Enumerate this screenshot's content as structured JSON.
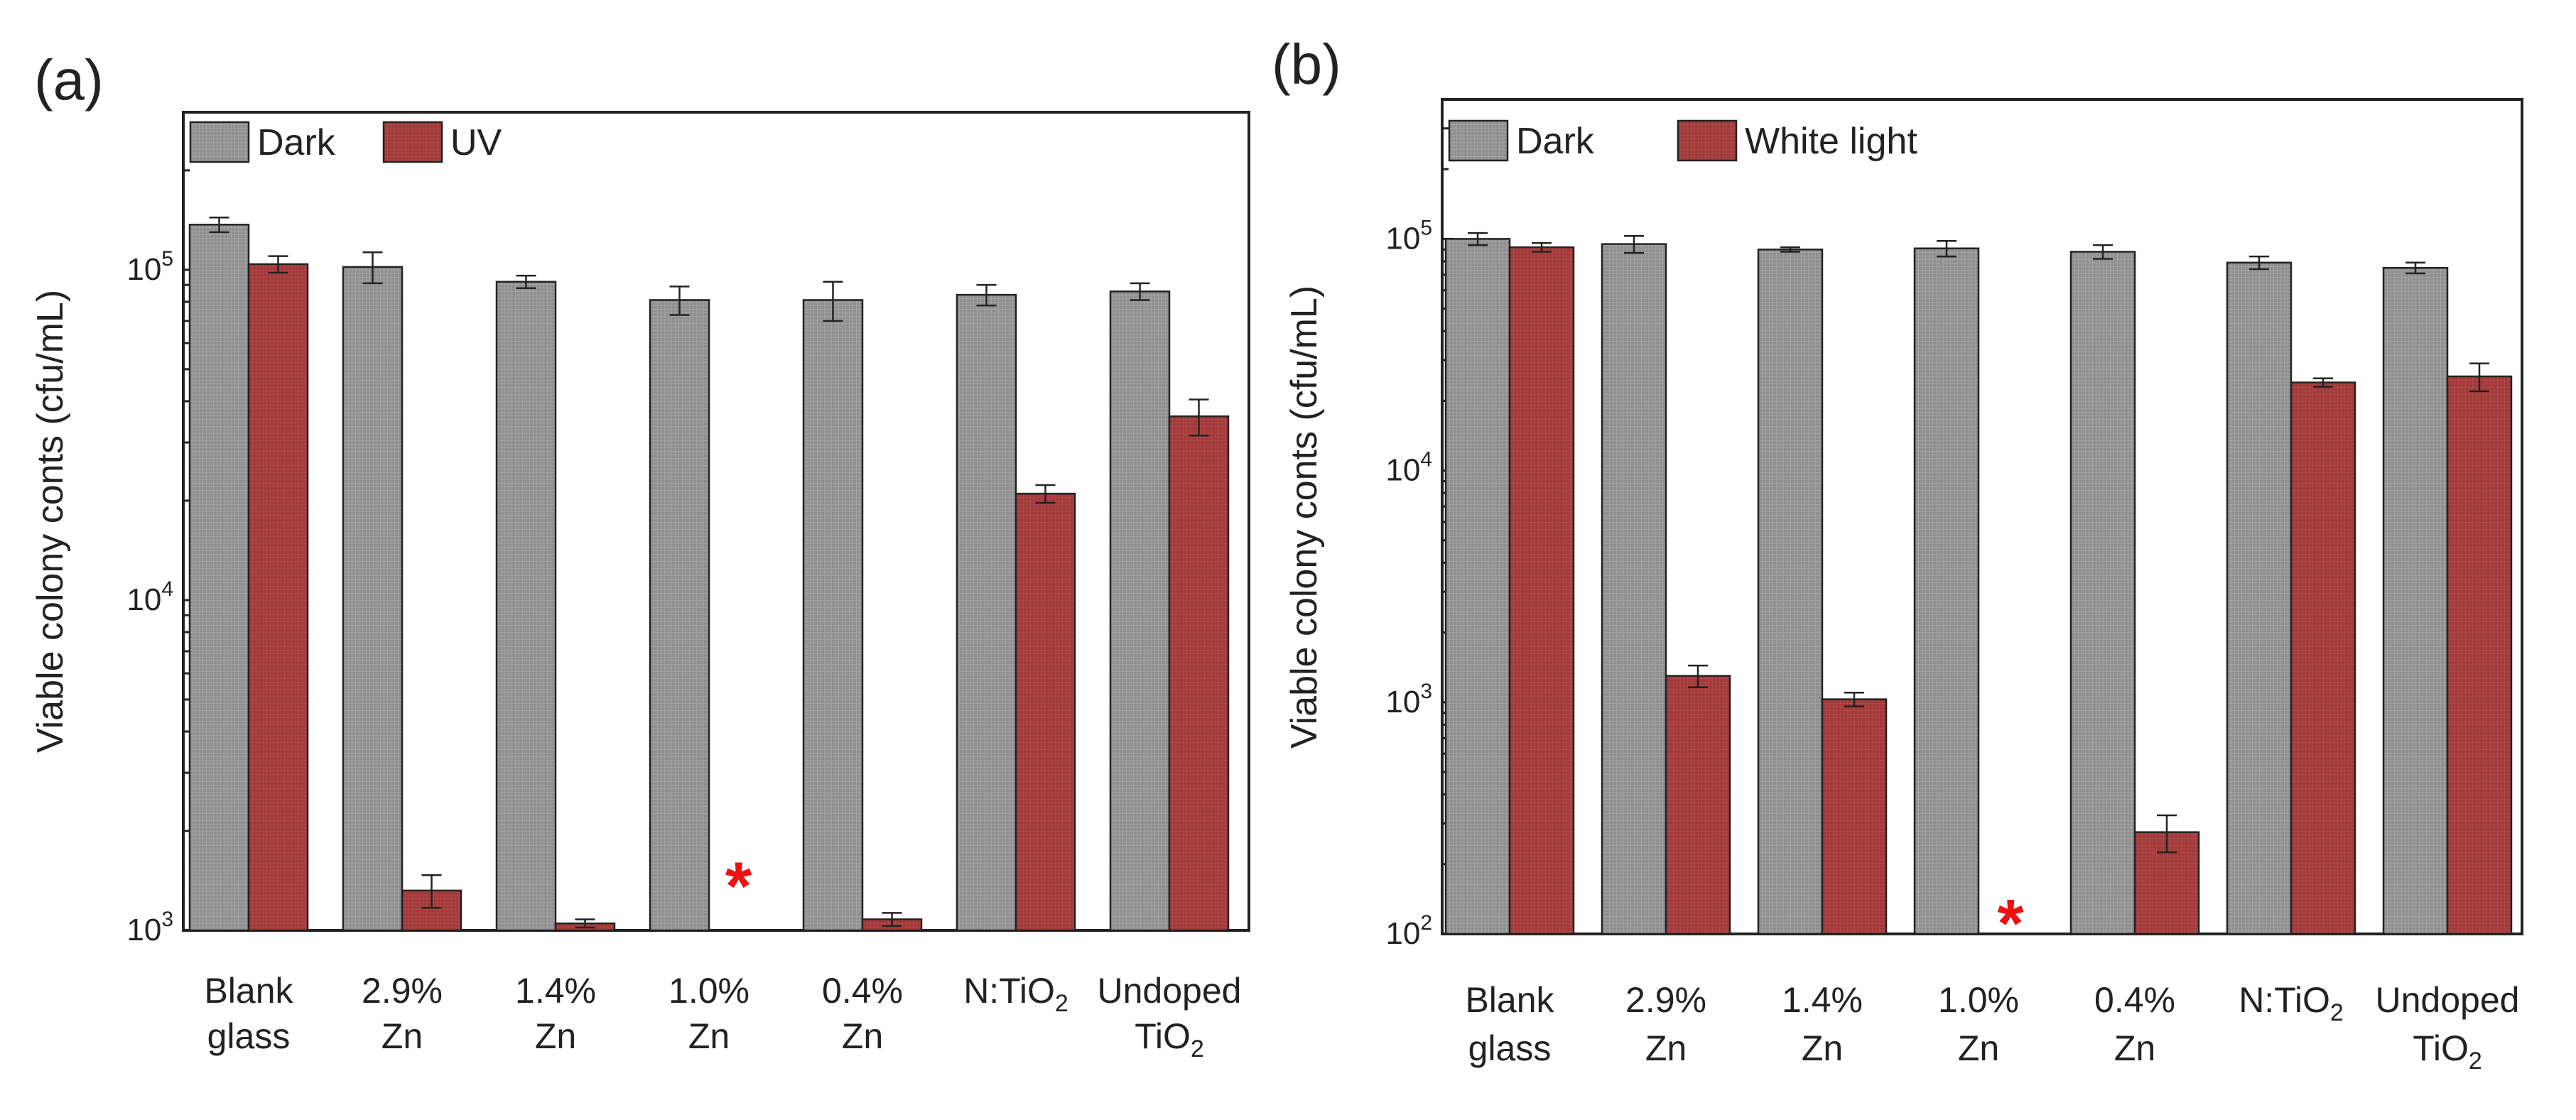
{
  "figure": {
    "colors": {
      "dark": "#8f8f8f",
      "light": "#a23a3a",
      "axis": "#222222",
      "marker": "#ee1111"
    },
    "marker_symbol": "*"
  },
  "chart_data": [
    {
      "panel_label": "(a)",
      "type": "bar",
      "yscale": "log",
      "ylim": [
        1000,
        300000
      ],
      "ylabel": "Viable colony conts (cfu/mL)",
      "yticks": [
        {
          "value": 1000,
          "base": "10",
          "exp": "3"
        },
        {
          "value": 10000,
          "base": "10",
          "exp": "4"
        },
        {
          "value": 100000,
          "base": "10",
          "exp": "5"
        }
      ],
      "legend": {
        "position": "top-left",
        "entries": [
          "Dark",
          "UV"
        ]
      },
      "categories": [
        [
          "Blank",
          "glass"
        ],
        [
          "2.9%",
          "Zn"
        ],
        [
          "1.4%",
          "Zn"
        ],
        [
          "1.0%",
          "Zn"
        ],
        [
          "0.4%",
          "Zn"
        ],
        [
          {
            "main": "N:TiO",
            "sub": "2"
          }
        ],
        [
          "Undoped",
          {
            "main": "TiO",
            "sub": "2"
          }
        ]
      ],
      "series": [
        {
          "name": "Dark",
          "values": [
            137000,
            102000,
            92000,
            81000,
            81000,
            84000,
            86000
          ],
          "errors": [
            7000,
            11000,
            4000,
            8000,
            11000,
            6000,
            5000
          ]
        },
        {
          "name": "UV",
          "values": [
            104000,
            1320,
            1050,
            null,
            1080,
            21000,
            36000
          ],
          "errors": [
            6000,
            150,
            30,
            null,
            50,
            1300,
            4500
          ]
        }
      ],
      "annotations": [
        {
          "text": "*",
          "category_index": 3,
          "series": "UV",
          "value": 1370
        }
      ]
    },
    {
      "panel_label": "(b)",
      "type": "bar",
      "yscale": "log",
      "ylim": [
        100,
        400000
      ],
      "ylabel": "Viable colony conts (cfu/mL)",
      "yticks": [
        {
          "value": 100,
          "base": "10",
          "exp": "2"
        },
        {
          "value": 1000,
          "base": "10",
          "exp": "3"
        },
        {
          "value": 10000,
          "base": "10",
          "exp": "4"
        },
        {
          "value": 100000,
          "base": "10",
          "exp": "5"
        }
      ],
      "legend": {
        "position": "top-left",
        "entries": [
          "Dark",
          "White light"
        ]
      },
      "categories": [
        [
          "Blank",
          "glass"
        ],
        [
          "2.9%",
          "Zn"
        ],
        [
          "1.4%",
          "Zn"
        ],
        [
          "1.0%",
          "Zn"
        ],
        [
          "0.4%",
          "Zn"
        ],
        [
          {
            "main": "N:TiO",
            "sub": "2"
          }
        ],
        [
          "Undoped",
          {
            "main": "TiO",
            "sub": "2"
          }
        ]
      ],
      "series": [
        {
          "name": "Dark",
          "values": [
            100000,
            95000,
            90000,
            91000,
            88000,
            79000,
            75000
          ],
          "errors": [
            6000,
            8000,
            2000,
            7000,
            6000,
            5000,
            4000
          ]
        },
        {
          "name": "White light",
          "values": [
            92000,
            1300,
            1030,
            null,
            275,
            24000,
            25500
          ],
          "errors": [
            4000,
            140,
            70,
            null,
            50,
            1000,
            3500
          ]
        }
      ],
      "annotations": [
        {
          "text": "*",
          "category_index": 3,
          "series": "White light",
          "value": 112
        }
      ]
    }
  ]
}
